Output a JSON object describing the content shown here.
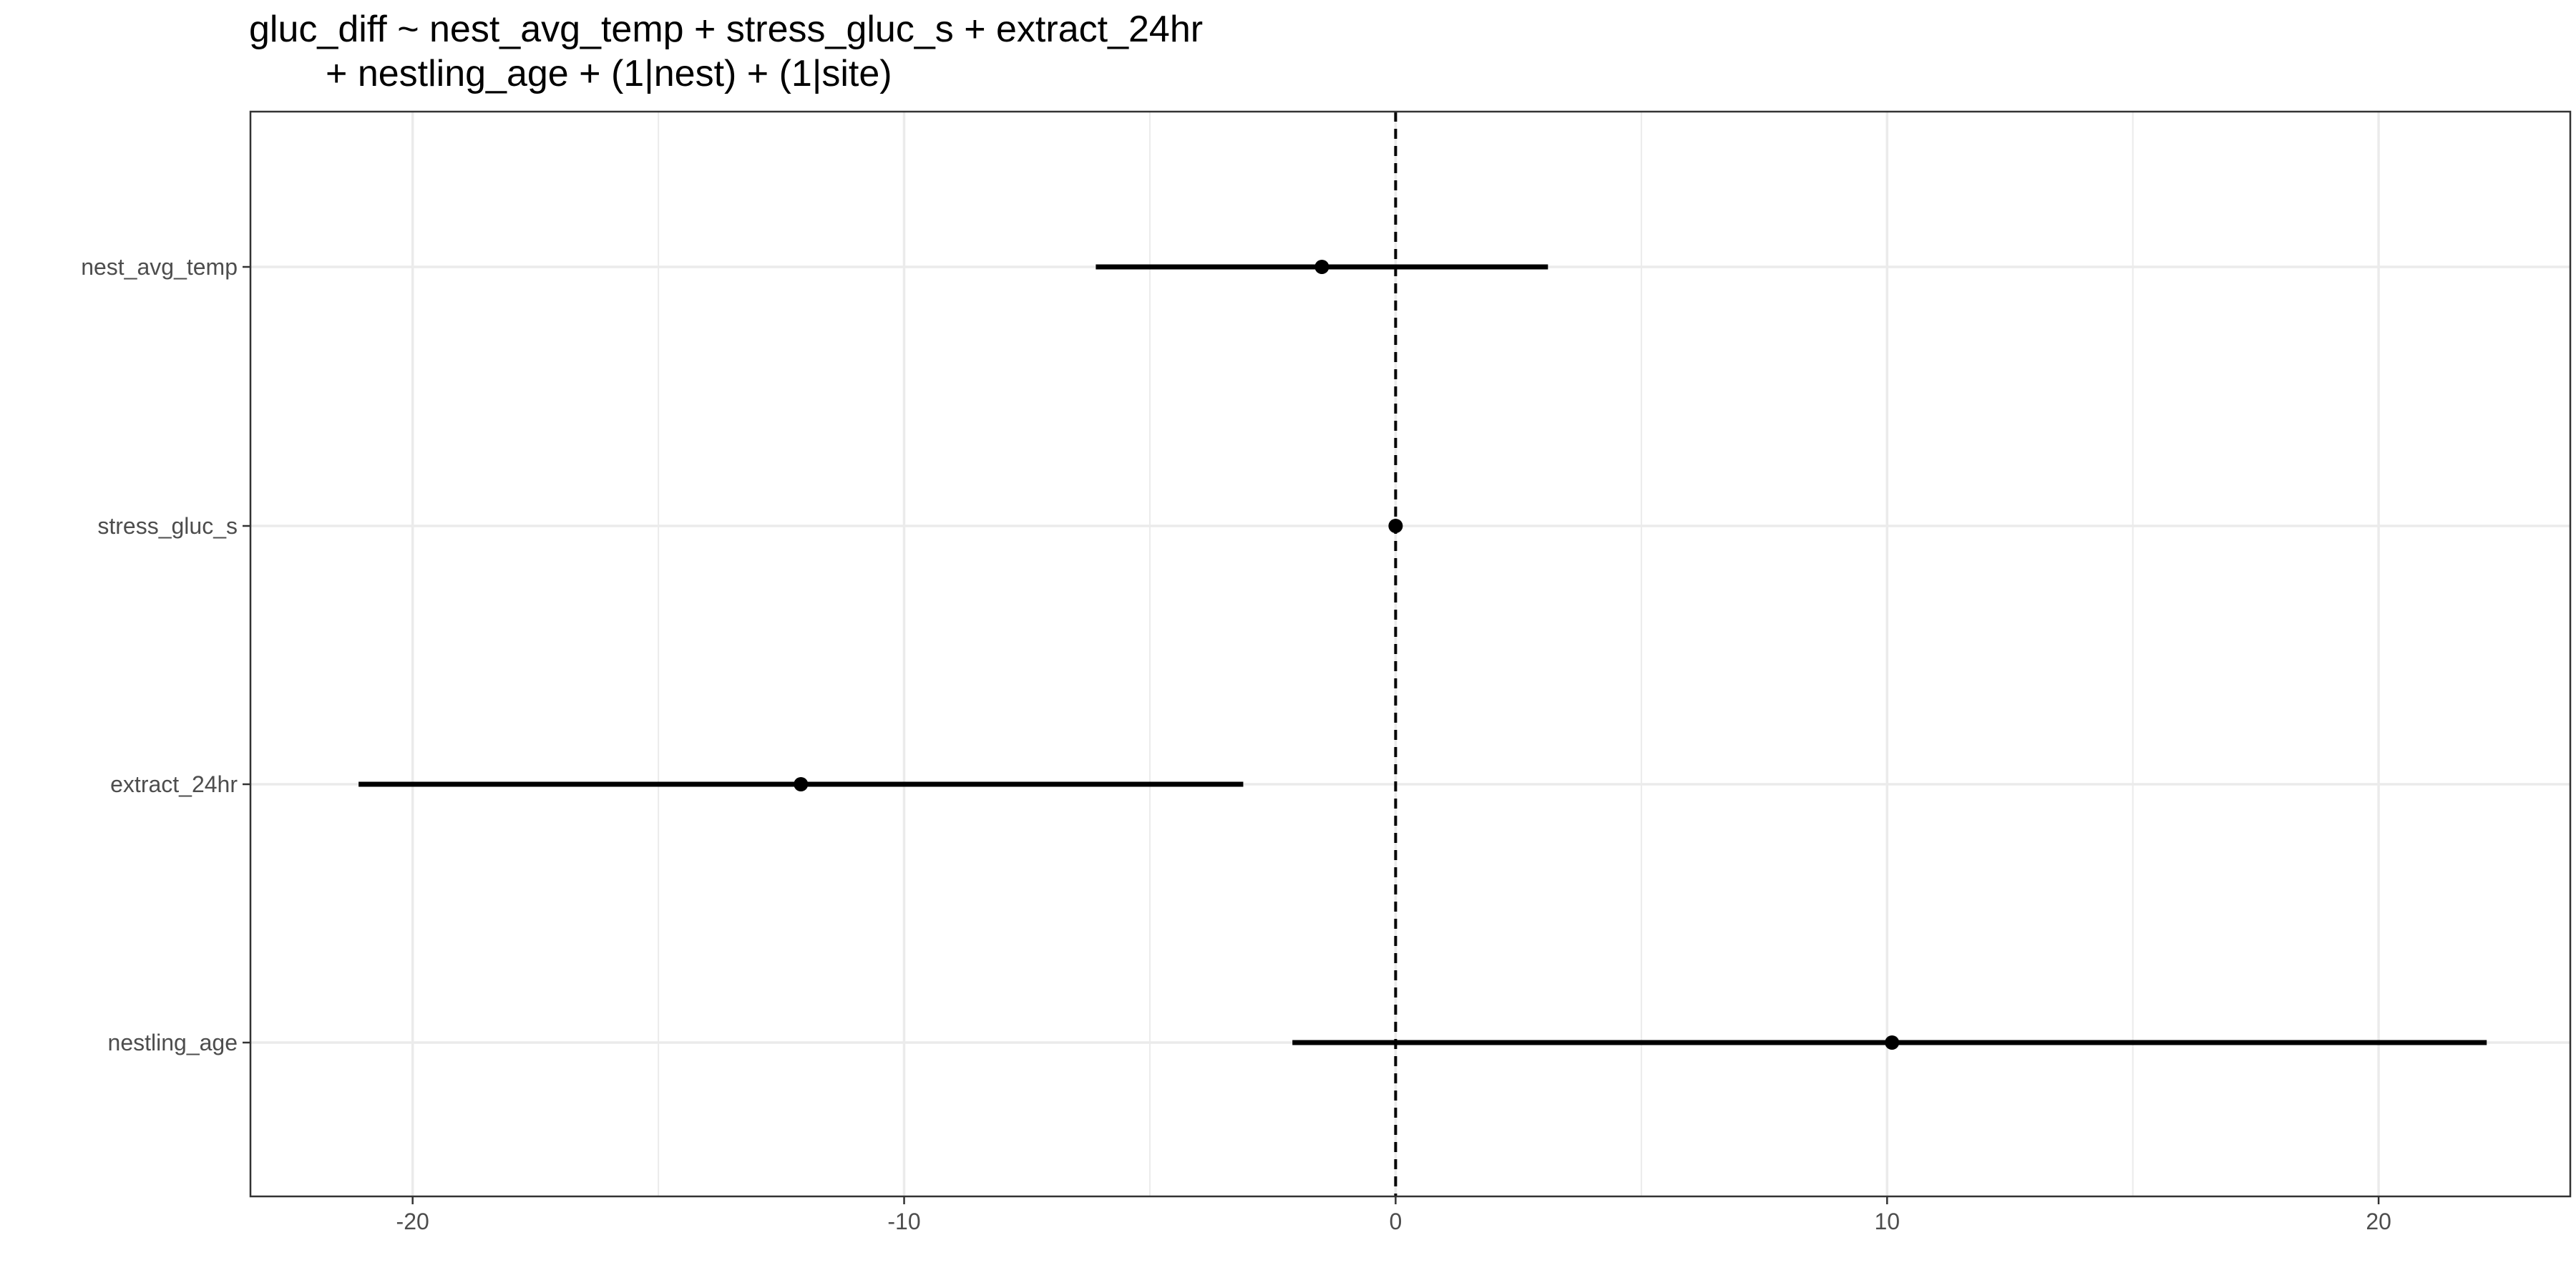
{
  "chart_data": {
    "type": "scatter",
    "subtype": "coefficient-plot",
    "title_lines": [
      "gluc_diff ~ nest_avg_temp + stress_gluc_s + extract_24hr",
      "+ nestling_age + (1|nest) + (1|site)"
    ],
    "xlabel": "",
    "ylabel": "",
    "xlim": [
      -23.3,
      23.9
    ],
    "x_ticks": [
      -20,
      -10,
      0,
      10,
      20
    ],
    "x_tick_labels": [
      "-20",
      "-10",
      "0",
      "10",
      "20"
    ],
    "categories": [
      "nest_avg_temp",
      "stress_gluc_s",
      "extract_24hr",
      "nestling_age"
    ],
    "estimates": [
      {
        "term": "nest_avg_temp",
        "estimate": -1.5,
        "lower": -6.1,
        "upper": 3.1
      },
      {
        "term": "stress_gluc_s",
        "estimate": 0.0,
        "lower": -0.05,
        "upper": 0.05
      },
      {
        "term": "extract_24hr",
        "estimate": -12.1,
        "lower": -21.1,
        "upper": -3.1
      },
      {
        "term": "nestling_age",
        "estimate": 10.1,
        "lower": -2.1,
        "upper": 22.2
      }
    ],
    "reference_line": {
      "x": 0,
      "style": "dashed"
    },
    "grid": true,
    "legend": "none",
    "colors": {
      "points": "#000000",
      "grid": "#ebebeb",
      "panel_border": "#333333"
    }
  }
}
